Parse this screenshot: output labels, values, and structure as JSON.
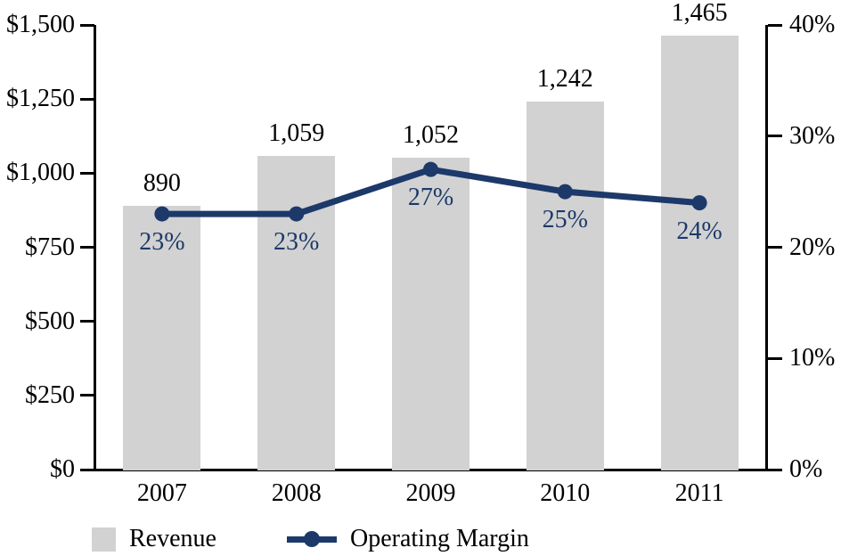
{
  "chart_data": {
    "type": "bar+line combo",
    "categories": [
      "2007",
      "2008",
      "2009",
      "2010",
      "2011"
    ],
    "series": [
      {
        "name": "Revenue",
        "type": "bar",
        "axis": "left",
        "values": [
          890,
          1059,
          1052,
          1242,
          1465
        ],
        "value_labels": [
          "890",
          "1,059",
          "1,052",
          "1,242",
          "1,465"
        ],
        "color": "#d2d2d2"
      },
      {
        "name": "Operating Margin",
        "type": "line",
        "axis": "right",
        "values": [
          23,
          23,
          27,
          25,
          24
        ],
        "value_labels": [
          "23%",
          "23%",
          "27%",
          "25%",
          "24%"
        ],
        "color": "#1c396a"
      }
    ],
    "left_axis": {
      "min": 0,
      "max": 1500,
      "tick_values": [
        1500,
        1250,
        1000,
        750,
        500,
        250,
        0
      ],
      "tick_labels": [
        "$1,500",
        "$1,250",
        "$1,000",
        "$750",
        "$500",
        "$250",
        "$0"
      ]
    },
    "right_axis": {
      "min": 0,
      "max": 40,
      "tick_values": [
        40,
        30,
        20,
        10,
        0
      ],
      "tick_labels": [
        "40%",
        "30%",
        "20%",
        "10%",
        "0%"
      ]
    },
    "legend": [
      {
        "label": "Revenue",
        "marker": "square"
      },
      {
        "label": "Operating Margin",
        "marker": "line-dot"
      }
    ],
    "title": "",
    "xlabel": "",
    "ylabel_left": "",
    "ylabel_right": "",
    "grid": "off",
    "legend_position": "bottom",
    "colors": {
      "bar": "#d2d2d2",
      "line": "#1c396a",
      "axis": "#000000",
      "text": "#000000",
      "background": "#ffffff"
    }
  }
}
